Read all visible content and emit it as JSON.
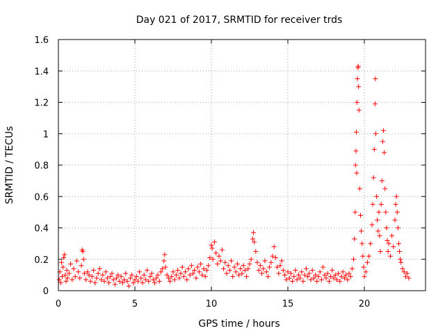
{
  "chart_data": {
    "type": "scatter",
    "title": "Day 021 of 2017, SRMTID for receiver trds",
    "xlabel": "GPS time / hours",
    "ylabel": "SRMTID / TECUs",
    "xlim": [
      0,
      24
    ],
    "ylim": [
      0,
      1.6
    ],
    "x_ticks": [
      0,
      5,
      10,
      15,
      20
    ],
    "x_tick_labels": [
      "0",
      "5",
      "10",
      "15",
      "20"
    ],
    "y_ticks": [
      0,
      0.2,
      0.4,
      0.6,
      0.8,
      1.0,
      1.2,
      1.4,
      1.6
    ],
    "y_tick_labels": [
      "0",
      "0.2",
      "0.4",
      "0.6",
      "0.8",
      "1",
      "1.2",
      "1.4",
      "1.6"
    ],
    "grid": true,
    "marker": "+",
    "marker_color": "#ff0000",
    "series": [
      {
        "name": "SRMTID",
        "points": [
          [
            0.05,
            0.07
          ],
          [
            0.1,
            0.12
          ],
          [
            0.15,
            0.05
          ],
          [
            0.2,
            0.18
          ],
          [
            0.25,
            0.09
          ],
          [
            0.3,
            0.15
          ],
          [
            0.35,
            0.21
          ],
          [
            0.4,
            0.23
          ],
          [
            0.45,
            0.1
          ],
          [
            0.5,
            0.06
          ],
          [
            0.55,
            0.13
          ],
          [
            0.6,
            0.08
          ],
          [
            0.7,
            0.11
          ],
          [
            0.8,
            0.17
          ],
          [
            0.9,
            0.07
          ],
          [
            1.0,
            0.14
          ],
          [
            1.1,
            0.09
          ],
          [
            1.2,
            0.19
          ],
          [
            1.3,
            0.12
          ],
          [
            1.4,
            0.08
          ],
          [
            1.5,
            0.16
          ],
          [
            1.55,
            0.26
          ],
          [
            1.6,
            0.25
          ],
          [
            1.65,
            0.2
          ],
          [
            1.7,
            0.11
          ],
          [
            1.8,
            0.07
          ],
          [
            1.9,
            0.12
          ],
          [
            2.0,
            0.1
          ],
          [
            2.1,
            0.06
          ],
          [
            2.2,
            0.09
          ],
          [
            2.3,
            0.13
          ],
          [
            2.4,
            0.05
          ],
          [
            2.5,
            0.08
          ],
          [
            2.6,
            0.11
          ],
          [
            2.7,
            0.14
          ],
          [
            2.8,
            0.07
          ],
          [
            2.9,
            0.1
          ],
          [
            3.0,
            0.06
          ],
          [
            3.1,
            0.12
          ],
          [
            3.2,
            0.08
          ],
          [
            3.3,
            0.05
          ],
          [
            3.4,
            0.09
          ],
          [
            3.5,
            0.11
          ],
          [
            3.6,
            0.07
          ],
          [
            3.7,
            0.04
          ],
          [
            3.8,
            0.08
          ],
          [
            3.9,
            0.1
          ],
          [
            4.0,
            0.06
          ],
          [
            4.1,
            0.09
          ],
          [
            4.2,
            0.05
          ],
          [
            4.3,
            0.07
          ],
          [
            4.4,
            0.11
          ],
          [
            4.5,
            0.06
          ],
          [
            4.6,
            0.03
          ],
          [
            4.7,
            0.08
          ],
          [
            4.8,
            0.1
          ],
          [
            4.9,
            0.05
          ],
          [
            5.0,
            0.07
          ],
          [
            5.1,
            0.09
          ],
          [
            5.2,
            0.06
          ],
          [
            5.3,
            0.12
          ],
          [
            5.4,
            0.08
          ],
          [
            5.5,
            0.05
          ],
          [
            5.6,
            0.1
          ],
          [
            5.7,
            0.07
          ],
          [
            5.8,
            0.13
          ],
          [
            5.9,
            0.06
          ],
          [
            6.0,
            0.09
          ],
          [
            6.1,
            0.11
          ],
          [
            6.2,
            0.07
          ],
          [
            6.3,
            0.05
          ],
          [
            6.4,
            0.08
          ],
          [
            6.5,
            0.1
          ],
          [
            6.6,
            0.06
          ],
          [
            6.7,
            0.12
          ],
          [
            6.8,
            0.14
          ],
          [
            6.9,
            0.19
          ],
          [
            6.95,
            0.23
          ],
          [
            7.0,
            0.15
          ],
          [
            7.1,
            0.1
          ],
          [
            7.2,
            0.08
          ],
          [
            7.3,
            0.06
          ],
          [
            7.4,
            0.09
          ],
          [
            7.5,
            0.12
          ],
          [
            7.6,
            0.07
          ],
          [
            7.7,
            0.1
          ],
          [
            7.8,
            0.13
          ],
          [
            7.9,
            0.08
          ],
          [
            8.0,
            0.11
          ],
          [
            8.1,
            0.15
          ],
          [
            8.2,
            0.09
          ],
          [
            8.3,
            0.12
          ],
          [
            8.4,
            0.07
          ],
          [
            8.5,
            0.14
          ],
          [
            8.6,
            0.1
          ],
          [
            8.7,
            0.16
          ],
          [
            8.8,
            0.11
          ],
          [
            8.9,
            0.13
          ],
          [
            9.0,
            0.08
          ],
          [
            9.1,
            0.15
          ],
          [
            9.2,
            0.12
          ],
          [
            9.3,
            0.17
          ],
          [
            9.4,
            0.1
          ],
          [
            9.5,
            0.14
          ],
          [
            9.6,
            0.09
          ],
          [
            9.7,
            0.13
          ],
          [
            9.8,
            0.16
          ],
          [
            9.9,
            0.21
          ],
          [
            10.0,
            0.29
          ],
          [
            10.05,
            0.27
          ],
          [
            10.1,
            0.2
          ],
          [
            10.2,
            0.31
          ],
          [
            10.3,
            0.24
          ],
          [
            10.4,
            0.17
          ],
          [
            10.5,
            0.22
          ],
          [
            10.6,
            0.19
          ],
          [
            10.7,
            0.26
          ],
          [
            10.8,
            0.14
          ],
          [
            10.9,
            0.18
          ],
          [
            11.0,
            0.11
          ],
          [
            11.1,
            0.16
          ],
          [
            11.2,
            0.13
          ],
          [
            11.3,
            0.19
          ],
          [
            11.4,
            0.09
          ],
          [
            11.5,
            0.15
          ],
          [
            11.6,
            0.12
          ],
          [
            11.7,
            0.17
          ],
          [
            11.8,
            0.1
          ],
          [
            11.9,
            0.14
          ],
          [
            12.0,
            0.11
          ],
          [
            12.1,
            0.16
          ],
          [
            12.2,
            0.13
          ],
          [
            12.3,
            0.09
          ],
          [
            12.4,
            0.14
          ],
          [
            12.5,
            0.17
          ],
          [
            12.6,
            0.2
          ],
          [
            12.7,
            0.33
          ],
          [
            12.75,
            0.37
          ],
          [
            12.8,
            0.31
          ],
          [
            12.9,
            0.25
          ],
          [
            13.0,
            0.18
          ],
          [
            13.1,
            0.13
          ],
          [
            13.2,
            0.16
          ],
          [
            13.3,
            0.11
          ],
          [
            13.4,
            0.14
          ],
          [
            13.5,
            0.19
          ],
          [
            13.6,
            0.12
          ],
          [
            13.7,
            0.09
          ],
          [
            13.8,
            0.15
          ],
          [
            13.9,
            0.18
          ],
          [
            14.0,
            0.22
          ],
          [
            14.1,
            0.28
          ],
          [
            14.2,
            0.21
          ],
          [
            14.3,
            0.15
          ],
          [
            14.4,
            0.11
          ],
          [
            14.5,
            0.16
          ],
          [
            14.6,
            0.19
          ],
          [
            14.7,
            0.13
          ],
          [
            14.8,
            0.1
          ],
          [
            14.9,
            0.07
          ],
          [
            15.0,
            0.12
          ],
          [
            15.1,
            0.08
          ],
          [
            15.2,
            0.11
          ],
          [
            15.3,
            0.06
          ],
          [
            15.4,
            0.09
          ],
          [
            15.5,
            0.13
          ],
          [
            15.6,
            0.07
          ],
          [
            15.7,
            0.1
          ],
          [
            15.8,
            0.08
          ],
          [
            15.9,
            0.12
          ],
          [
            16.0,
            0.06
          ],
          [
            16.1,
            0.1
          ],
          [
            16.2,
            0.14
          ],
          [
            16.3,
            0.09
          ],
          [
            16.4,
            0.11
          ],
          [
            16.5,
            0.07
          ],
          [
            16.6,
            0.13
          ],
          [
            16.7,
            0.08
          ],
          [
            16.8,
            0.1
          ],
          [
            16.9,
            0.06
          ],
          [
            17.0,
            0.09
          ],
          [
            17.1,
            0.12
          ],
          [
            17.2,
            0.07
          ],
          [
            17.3,
            0.15
          ],
          [
            17.4,
            0.1
          ],
          [
            17.5,
            0.08
          ],
          [
            17.6,
            0.11
          ],
          [
            17.7,
            0.06
          ],
          [
            17.8,
            0.09
          ],
          [
            17.9,
            0.13
          ],
          [
            18.0,
            0.08
          ],
          [
            18.1,
            0.1
          ],
          [
            18.2,
            0.07
          ],
          [
            18.3,
            0.11
          ],
          [
            18.4,
            0.06
          ],
          [
            18.5,
            0.09
          ],
          [
            18.6,
            0.12
          ],
          [
            18.7,
            0.08
          ],
          [
            18.8,
            0.1
          ],
          [
            18.9,
            0.07
          ],
          [
            19.0,
            0.11
          ],
          [
            19.1,
            0.09
          ],
          [
            19.2,
            0.14
          ],
          [
            19.3,
            0.2
          ],
          [
            19.35,
            0.33
          ],
          [
            19.4,
            0.5
          ],
          [
            19.42,
            0.8
          ],
          [
            19.45,
            0.89
          ],
          [
            19.48,
            1.01
          ],
          [
            19.5,
            0.75
          ],
          [
            19.52,
            1.2
          ],
          [
            19.55,
            1.35
          ],
          [
            19.58,
            1.42
          ],
          [
            19.6,
            1.43
          ],
          [
            19.62,
            1.3
          ],
          [
            19.65,
            1.15
          ],
          [
            19.7,
            0.65
          ],
          [
            19.75,
            0.48
          ],
          [
            19.8,
            0.38
          ],
          [
            19.85,
            0.3
          ],
          [
            19.9,
            0.22
          ],
          [
            19.95,
            0.15
          ],
          [
            20.0,
            0.09
          ],
          [
            20.1,
            0.12
          ],
          [
            20.2,
            0.18
          ],
          [
            20.3,
            0.22
          ],
          [
            20.4,
            0.3
          ],
          [
            20.5,
            0.42
          ],
          [
            20.55,
            0.55
          ],
          [
            20.6,
            0.72
          ],
          [
            20.65,
            0.9
          ],
          [
            20.7,
            1.19
          ],
          [
            20.72,
            1.35
          ],
          [
            20.75,
            1.0
          ],
          [
            20.8,
            0.6
          ],
          [
            20.85,
            0.45
          ],
          [
            20.9,
            0.38
          ],
          [
            20.95,
            0.5
          ],
          [
            21.0,
            0.35
          ],
          [
            21.05,
            0.25
          ],
          [
            21.1,
            0.55
          ],
          [
            21.15,
            0.7
          ],
          [
            21.2,
            0.95
          ],
          [
            21.25,
            1.02
          ],
          [
            21.3,
            0.88
          ],
          [
            21.35,
            0.65
          ],
          [
            21.4,
            0.5
          ],
          [
            21.45,
            0.4
          ],
          [
            21.5,
            0.32
          ],
          [
            21.55,
            0.25
          ],
          [
            21.6,
            0.3
          ],
          [
            21.7,
            0.22
          ],
          [
            21.8,
            0.35
          ],
          [
            21.9,
            0.28
          ],
          [
            22.0,
            0.45
          ],
          [
            22.05,
            0.55
          ],
          [
            22.1,
            0.6
          ],
          [
            22.15,
            0.5
          ],
          [
            22.2,
            0.4
          ],
          [
            22.25,
            0.3
          ],
          [
            22.3,
            0.25
          ],
          [
            22.35,
            0.2
          ],
          [
            22.4,
            0.18
          ],
          [
            22.5,
            0.14
          ],
          [
            22.6,
            0.12
          ],
          [
            22.7,
            0.09
          ],
          [
            22.8,
            0.11
          ],
          [
            22.9,
            0.08
          ]
        ]
      }
    ]
  }
}
